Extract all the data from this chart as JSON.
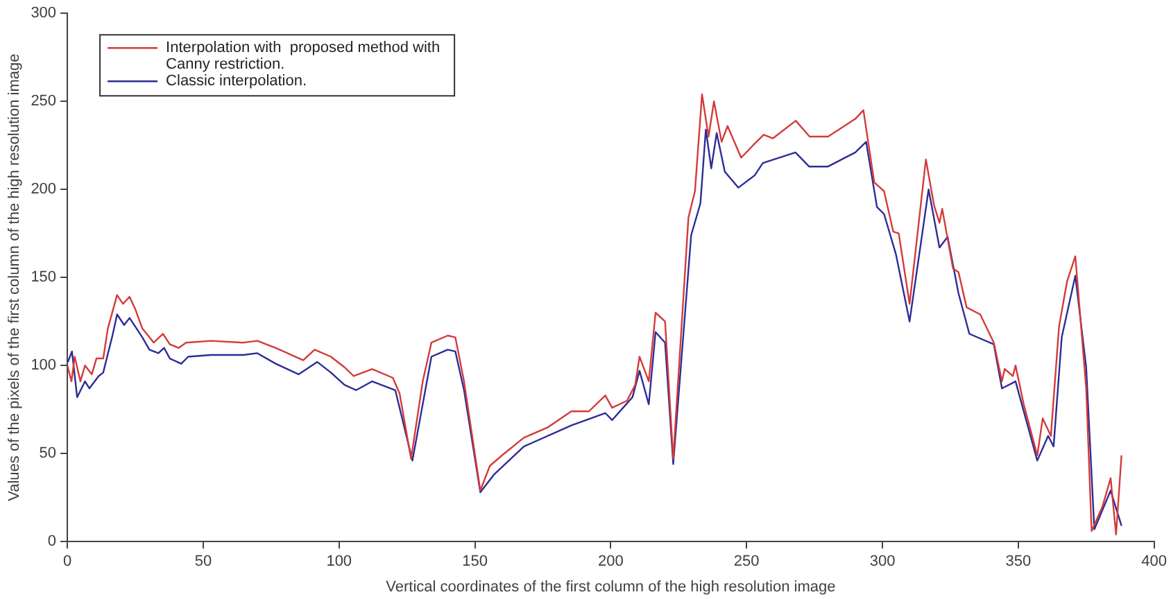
{
  "chart_data": {
    "type": "line",
    "xlabel": "Vertical coordinates of the first column of the high resolution image",
    "ylabel": "Values of the pixels of the first column of the high resolution image",
    "xlim": [
      0,
      400
    ],
    "xticks": [
      0,
      50,
      100,
      150,
      200,
      250,
      300,
      350,
      400
    ],
    "ylim": [
      0,
      300
    ],
    "yticks": [
      0,
      50,
      100,
      150,
      200,
      250,
      300
    ],
    "grid": false,
    "legend": "top left",
    "marker": "none",
    "line_style": "solid",
    "series": [
      {
        "name": "Interpolation with  proposed method with Canny restriction.",
        "color": "#d43a3a",
        "x": [
          0,
          1.5,
          2.7,
          4.8,
          6.5,
          9,
          10.7,
          13.2,
          14.9,
          18.3,
          20.5,
          22.9,
          25,
          27.6,
          31.8,
          35.2,
          37.7,
          41,
          43.7,
          52.9,
          64.8,
          69.9,
          76.7,
          86.8,
          91,
          97,
          102,
          105.4,
          112.2,
          119.8,
          122.3,
          126.5,
          130.8,
          134,
          140,
          142.8,
          146,
          152,
          155.5,
          160,
          168,
          177,
          185.5,
          192,
          198,
          200.5,
          206,
          209,
          210.6,
          214,
          216.5,
          220,
          223,
          228.6,
          231,
          233.6,
          236,
          238,
          240.8,
          243,
          248,
          253,
          256.3,
          259.7,
          268.1,
          273.2,
          280,
          290,
          293,
          297,
          300.6,
          304,
          306,
          310,
          316,
          319,
          321,
          322,
          326,
          328,
          331,
          336,
          341,
          344,
          345,
          348,
          349,
          352,
          357,
          359,
          362,
          365,
          368,
          371,
          375,
          377,
          381,
          384,
          386,
          388
        ],
        "values": [
          100,
          91,
          105,
          91,
          100,
          95,
          104,
          104,
          121,
          140,
          135,
          139,
          132,
          121,
          113,
          118,
          112,
          110,
          113,
          114,
          113,
          114,
          110,
          103,
          109,
          105,
          99,
          94,
          98,
          93,
          84,
          47,
          91,
          113,
          117,
          116,
          91,
          29,
          43,
          49,
          59,
          65,
          74,
          74,
          83,
          76,
          80,
          89,
          105,
          91,
          130,
          125,
          47,
          184,
          199,
          254,
          230,
          250,
          227,
          236,
          218,
          226,
          231,
          229,
          239,
          230,
          230,
          240,
          245,
          204,
          199,
          176,
          175,
          135,
          217,
          191,
          181,
          189,
          155,
          153,
          133,
          129,
          113,
          91,
          98,
          94,
          100,
          78,
          49,
          70,
          60,
          122,
          148,
          162,
          87,
          6,
          20,
          36,
          4,
          49
        ]
      },
      {
        "name": "Classic interpolation.",
        "color": "#2c2c96",
        "x": [
          0.2,
          1.7,
          3.6,
          6.5,
          8.1,
          11.5,
          13.2,
          16.6,
          18.3,
          20.9,
          22.9,
          27.6,
          30.2,
          33.5,
          35.6,
          37.7,
          41.9,
          44.5,
          52.9,
          64.8,
          69.9,
          76.7,
          85.1,
          92,
          97,
          102,
          106.3,
          112.2,
          120.7,
          127,
          134,
          140,
          142.8,
          146,
          152,
          157,
          168,
          185.5,
          198,
          200.5,
          208,
          210.6,
          214,
          216.5,
          220,
          223,
          229.6,
          233,
          235,
          237,
          239,
          242,
          247,
          253,
          256,
          268,
          273,
          280,
          290,
          294,
          298,
          300.6,
          305,
          310,
          317,
          321,
          324,
          328,
          332,
          341,
          344,
          349,
          357,
          361,
          363,
          366,
          371,
          375,
          378,
          384,
          388
        ],
        "values": [
          102,
          108,
          82,
          91,
          87,
          94,
          96,
          117,
          129,
          123,
          127,
          116,
          109,
          107,
          110,
          104,
          101,
          105,
          106,
          106,
          107,
          101,
          95,
          102,
          96,
          89,
          86,
          91,
          86,
          46,
          105,
          109,
          108,
          86,
          28,
          38,
          54,
          66,
          73,
          69,
          82,
          97,
          78,
          119,
          113,
          44,
          174,
          192,
          234,
          212,
          232,
          210,
          201,
          208,
          215,
          221,
          213,
          213,
          221,
          227,
          190,
          186,
          163,
          125,
          200,
          167,
          173,
          141,
          118,
          112,
          87,
          91,
          46,
          60,
          54,
          116,
          151,
          99,
          7,
          29,
          9
        ]
      }
    ]
  }
}
